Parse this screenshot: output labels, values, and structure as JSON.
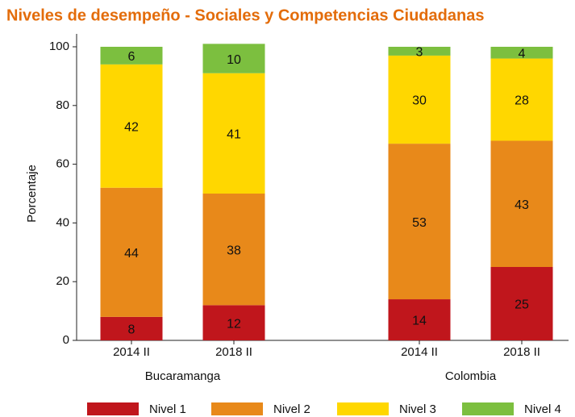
{
  "chart_data": {
    "type": "stacked_bar",
    "title": "Niveles de desempeño - Sociales y Competencias Ciudadanas",
    "ylabel": "Porcentaje",
    "categories": [
      "2014 II",
      "2018 II",
      "2014 II",
      "2018 II"
    ],
    "groups": [
      "Bucaramanga",
      "Colombia"
    ],
    "series": [
      {
        "name": "Nivel 1",
        "color": "#c0161c",
        "values": [
          8,
          12,
          14,
          25
        ]
      },
      {
        "name": "Nivel 2",
        "color": "#e8891a",
        "values": [
          44,
          38,
          53,
          43
        ]
      },
      {
        "name": "Nivel 3",
        "color": "#ffd700",
        "values": [
          42,
          41,
          30,
          28
        ]
      },
      {
        "name": "Nivel 4",
        "color": "#7cbf3f",
        "values": [
          6,
          10,
          3,
          4
        ]
      }
    ],
    "ylim": [
      0,
      100
    ],
    "yticks": [
      0,
      20,
      40,
      60,
      80,
      100
    ],
    "legend": "bottom"
  }
}
